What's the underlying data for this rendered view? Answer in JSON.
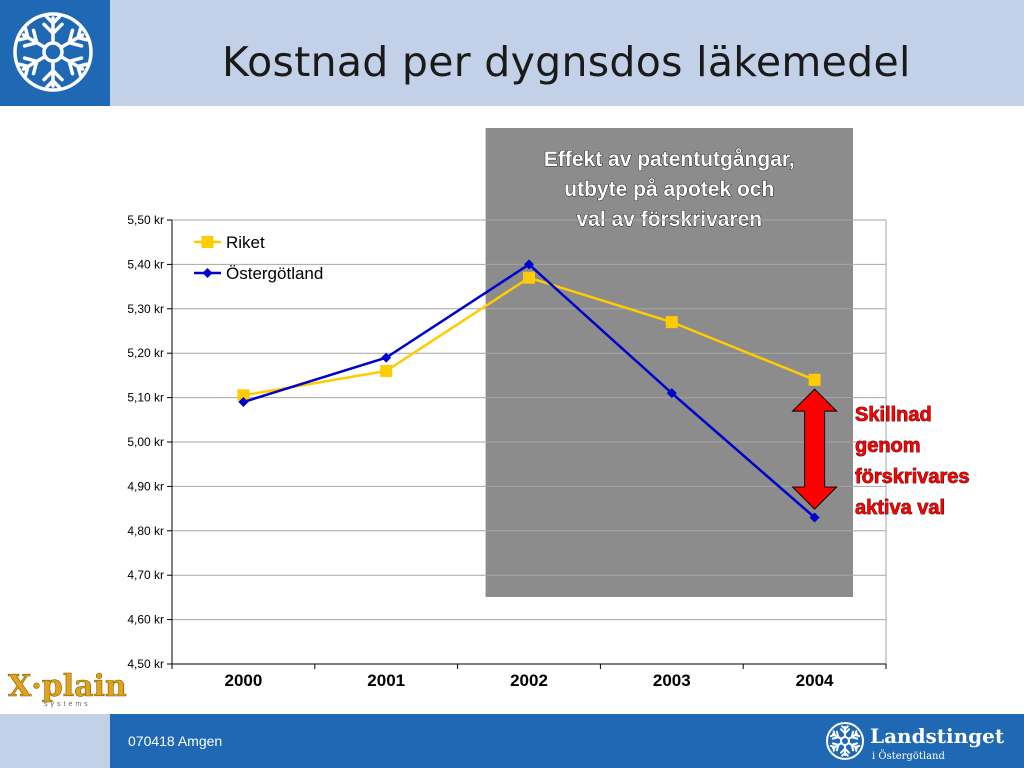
{
  "header": {
    "title": "Kostnad per dygnsdos läkemedel",
    "colors": {
      "brand_blue": "#1f68b4",
      "light_blue": "#c2d1e8"
    }
  },
  "footer": {
    "text": "070418 Amgen",
    "landsting_name": "Landstinget",
    "landsting_sub": "i Östergötland",
    "xplain_logo_text": "X·plain",
    "xplain_logo_sub": "systems"
  },
  "chart_data": {
    "type": "line",
    "categories": [
      "2000",
      "2001",
      "2002",
      "2003",
      "2004"
    ],
    "series": [
      {
        "name": "Riket",
        "values": [
          5.105,
          5.16,
          5.37,
          5.27,
          5.14
        ],
        "color": "#ffcc00",
        "marker": "square"
      },
      {
        "name": "Östergötland",
        "values": [
          5.09,
          5.19,
          5.4,
          5.11,
          4.83
        ],
        "color": "#0000cc",
        "marker": "diamond"
      }
    ],
    "ylim": [
      4.5,
      5.5
    ],
    "yticks": [
      "4,50 kr",
      "4,60 kr",
      "4,70 kr",
      "4,80 kr",
      "4,90 kr",
      "5,00 kr",
      "5,10 kr",
      "5,20 kr",
      "5,30 kr",
      "5,40 kr",
      "5,50 kr"
    ],
    "grid": true,
    "legend_position": "top-left",
    "highlight": {
      "categories": [
        "2002",
        "2003",
        "2004"
      ],
      "text_lines": [
        "Effekt av patentutgångar,",
        "utbyte på apotek och",
        "val av förskrivaren"
      ],
      "color": "#8c8c8c"
    },
    "annotation": {
      "text_lines": [
        "Skillnad",
        "genom",
        "förskrivares",
        "aktiva val"
      ],
      "color": "#ff0000",
      "arrow_range": [
        4.84,
        5.11
      ]
    }
  }
}
